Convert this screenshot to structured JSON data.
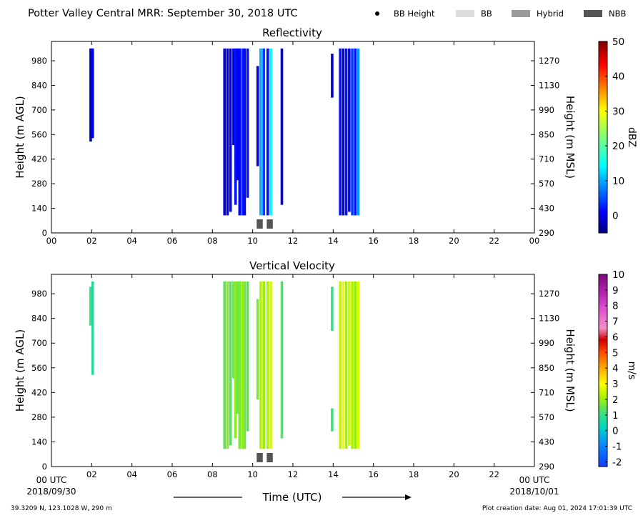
{
  "figure": {
    "title": "Potter Valley Central MRR:  September 30, 2018 UTC",
    "legend": [
      {
        "label": "BB Height",
        "kind": "dot",
        "color": "#000000"
      },
      {
        "label": "BB",
        "kind": "box",
        "color": "#dcdcdc"
      },
      {
        "label": "Hybrid",
        "kind": "box",
        "color": "#9a9a9a"
      },
      {
        "label": "NBB",
        "kind": "box",
        "color": "#555555"
      }
    ],
    "location": "39.3209 N, 123.1028 W, 290 m",
    "creation_date": "Plot creation date: Aug 01, 2024 17:01:39 UTC",
    "xlabel": "Time (UTC)",
    "start_label": [
      "00 UTC",
      "2018/09/30"
    ],
    "end_label": [
      "00 UTC",
      "2018/10/01"
    ]
  },
  "chart_data": [
    {
      "type": "heatmap",
      "title": "Reflectivity",
      "ylabel_left": "Height (m AGL)",
      "ylabel_right": "Height (m MSL)",
      "xlim": [
        0,
        24
      ],
      "ylim": [
        0,
        1090
      ],
      "x_ticks": [
        "00",
        "02",
        "04",
        "06",
        "08",
        "10",
        "12",
        "14",
        "16",
        "18",
        "20",
        "22",
        "00"
      ],
      "y_ticks_left": [
        0,
        140,
        280,
        420,
        560,
        700,
        840,
        980
      ],
      "y_ticks_right": [
        290,
        430,
        570,
        710,
        850,
        990,
        1130,
        1270
      ],
      "colorbar": {
        "label": "dBZ",
        "range": [
          -5,
          50
        ],
        "ticks": [
          0,
          10,
          20,
          30,
          40,
          50
        ],
        "colormap": "jet"
      },
      "echoes": [
        {
          "t": 1.95,
          "h0": 520,
          "h1": 1050,
          "v": -2
        },
        {
          "t": 2.05,
          "h0": 540,
          "h1": 1050,
          "v": 0
        },
        {
          "t": 8.6,
          "h0": 100,
          "h1": 1050,
          "v": -1
        },
        {
          "t": 8.75,
          "h0": 100,
          "h1": 1050,
          "v": 0
        },
        {
          "t": 8.9,
          "h0": 120,
          "h1": 1050,
          "v": 1
        },
        {
          "t": 9.05,
          "h0": 500,
          "h1": 1050,
          "v": 0
        },
        {
          "t": 9.15,
          "h0": 160,
          "h1": 1050,
          "v": 2
        },
        {
          "t": 9.25,
          "h0": 300,
          "h1": 1050,
          "v": 0
        },
        {
          "t": 9.35,
          "h0": 100,
          "h1": 1050,
          "v": 1
        },
        {
          "t": 9.5,
          "h0": 100,
          "h1": 1050,
          "v": 3
        },
        {
          "t": 9.6,
          "h0": 100,
          "h1": 1050,
          "v": 1
        },
        {
          "t": 9.75,
          "h0": 200,
          "h1": 1050,
          "v": 2
        },
        {
          "t": 10.25,
          "h0": 380,
          "h1": 950,
          "v": 0
        },
        {
          "t": 10.4,
          "h0": 100,
          "h1": 1050,
          "v": 10
        },
        {
          "t": 10.55,
          "h0": 100,
          "h1": 1050,
          "v": 4
        },
        {
          "t": 10.75,
          "h0": 100,
          "h1": 1050,
          "v": 2
        },
        {
          "t": 10.9,
          "h0": 100,
          "h1": 1050,
          "v": 14
        },
        {
          "t": 11.45,
          "h0": 160,
          "h1": 1050,
          "v": 0
        },
        {
          "t": 13.95,
          "h0": 770,
          "h1": 1020,
          "v": -1
        },
        {
          "t": 14.35,
          "h0": 100,
          "h1": 1050,
          "v": 2
        },
        {
          "t": 14.5,
          "h0": 100,
          "h1": 1050,
          "v": 0
        },
        {
          "t": 14.65,
          "h0": 100,
          "h1": 1050,
          "v": 2
        },
        {
          "t": 14.8,
          "h0": 120,
          "h1": 1050,
          "v": 1
        },
        {
          "t": 14.95,
          "h0": 100,
          "h1": 1050,
          "v": 4
        },
        {
          "t": 15.1,
          "h0": 100,
          "h1": 1050,
          "v": 2
        },
        {
          "t": 15.25,
          "h0": 100,
          "h1": 1050,
          "v": 9
        }
      ],
      "bb_types": [
        {
          "t0": 10.2,
          "t1": 10.5,
          "type": "NBB"
        },
        {
          "t0": 10.7,
          "t1": 11.0,
          "type": "NBB"
        }
      ]
    },
    {
      "type": "heatmap",
      "title": "Vertical Velocity",
      "ylabel_left": "Height (m AGL)",
      "ylabel_right": "Height (m MSL)",
      "xlim": [
        0,
        24
      ],
      "ylim": [
        0,
        1090
      ],
      "x_ticks": [
        "00",
        "02",
        "04",
        "06",
        "08",
        "10",
        "12",
        "14",
        "16",
        "18",
        "20",
        "22",
        "00"
      ],
      "y_ticks_left": [
        0,
        140,
        280,
        420,
        560,
        700,
        840,
        980
      ],
      "y_ticks_right": [
        290,
        430,
        570,
        710,
        850,
        990,
        1130,
        1270
      ],
      "colorbar": {
        "label": "m/s",
        "range": [
          -2.3,
          10
        ],
        "ticks": [
          -2,
          -1,
          0,
          1,
          2,
          3,
          4,
          5,
          6,
          7,
          8,
          9,
          10
        ],
        "colormap": "velocity"
      },
      "echoes": [
        {
          "t": 1.95,
          "h0": 800,
          "h1": 1020,
          "v": 1.0
        },
        {
          "t": 2.05,
          "h0": 520,
          "h1": 1050,
          "v": 0.7
        },
        {
          "t": 8.6,
          "h0": 100,
          "h1": 1050,
          "v": 1.4
        },
        {
          "t": 8.75,
          "h0": 100,
          "h1": 1050,
          "v": 1.8
        },
        {
          "t": 8.9,
          "h0": 120,
          "h1": 1050,
          "v": 1.3
        },
        {
          "t": 9.05,
          "h0": 500,
          "h1": 1050,
          "v": 1.6
        },
        {
          "t": 9.15,
          "h0": 160,
          "h1": 1050,
          "v": 1.9
        },
        {
          "t": 9.25,
          "h0": 300,
          "h1": 1050,
          "v": 1.5
        },
        {
          "t": 9.35,
          "h0": 100,
          "h1": 1050,
          "v": 1.7
        },
        {
          "t": 9.5,
          "h0": 100,
          "h1": 1050,
          "v": 2.0
        },
        {
          "t": 9.6,
          "h0": 100,
          "h1": 1050,
          "v": 1.6
        },
        {
          "t": 9.75,
          "h0": 200,
          "h1": 1050,
          "v": 1.4
        },
        {
          "t": 10.25,
          "h0": 380,
          "h1": 950,
          "v": 1.7
        },
        {
          "t": 10.4,
          "h0": 100,
          "h1": 1050,
          "v": 2.3
        },
        {
          "t": 10.55,
          "h0": 100,
          "h1": 1050,
          "v": 2.0
        },
        {
          "t": 10.75,
          "h0": 100,
          "h1": 1050,
          "v": 2.2
        },
        {
          "t": 10.9,
          "h0": 100,
          "h1": 1050,
          "v": 2.6
        },
        {
          "t": 11.45,
          "h0": 160,
          "h1": 1050,
          "v": 1.3
        },
        {
          "t": 13.95,
          "h0": 770,
          "h1": 1020,
          "v": 1.0
        },
        {
          "t": 13.95,
          "h0": 200,
          "h1": 330,
          "v": 1.1
        },
        {
          "t": 14.35,
          "h0": 100,
          "h1": 1050,
          "v": 2.4
        },
        {
          "t": 14.5,
          "h0": 100,
          "h1": 1050,
          "v": 2.8
        },
        {
          "t": 14.65,
          "h0": 100,
          "h1": 1050,
          "v": 2.1
        },
        {
          "t": 14.8,
          "h0": 120,
          "h1": 1050,
          "v": 2.5
        },
        {
          "t": 14.95,
          "h0": 100,
          "h1": 1050,
          "v": 2.2
        },
        {
          "t": 15.1,
          "h0": 100,
          "h1": 1050,
          "v": 2.0
        },
        {
          "t": 15.25,
          "h0": 100,
          "h1": 1050,
          "v": 2.7
        }
      ],
      "bb_types": [
        {
          "t0": 10.2,
          "t1": 10.5,
          "type": "NBB"
        },
        {
          "t0": 10.7,
          "t1": 11.0,
          "type": "NBB"
        }
      ]
    }
  ]
}
